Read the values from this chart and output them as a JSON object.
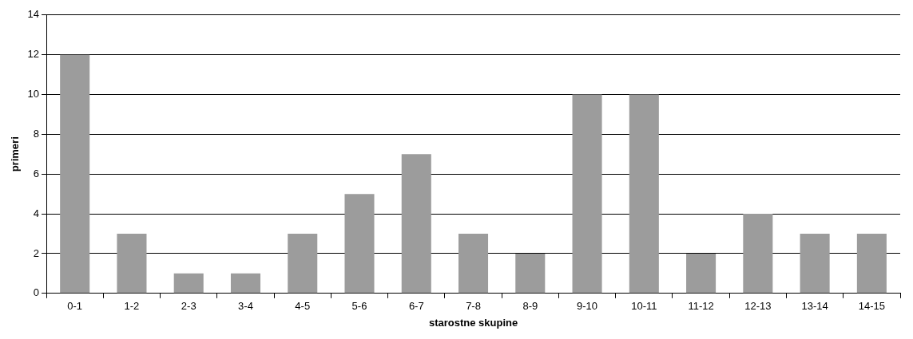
{
  "chart_data": {
    "type": "bar",
    "xlabel": "starostne skupine",
    "ylabel": "primeri",
    "categories": [
      "0-1",
      "1-2",
      "2-3",
      "3-4",
      "4-5",
      "5-6",
      "6-7",
      "7-8",
      "8-9",
      "9-10",
      "10-11",
      "11-12",
      "12-13",
      "13-14",
      "14-15"
    ],
    "values": [
      12,
      3,
      1,
      1,
      3,
      5,
      7,
      3,
      2,
      10,
      10,
      2,
      4,
      3,
      3
    ],
    "color": "#9c9c9c",
    "ylim": [
      0,
      14
    ],
    "yticks": [
      0,
      2,
      4,
      6,
      8,
      10,
      12,
      14
    ],
    "grid": "y",
    "legend": false
  }
}
